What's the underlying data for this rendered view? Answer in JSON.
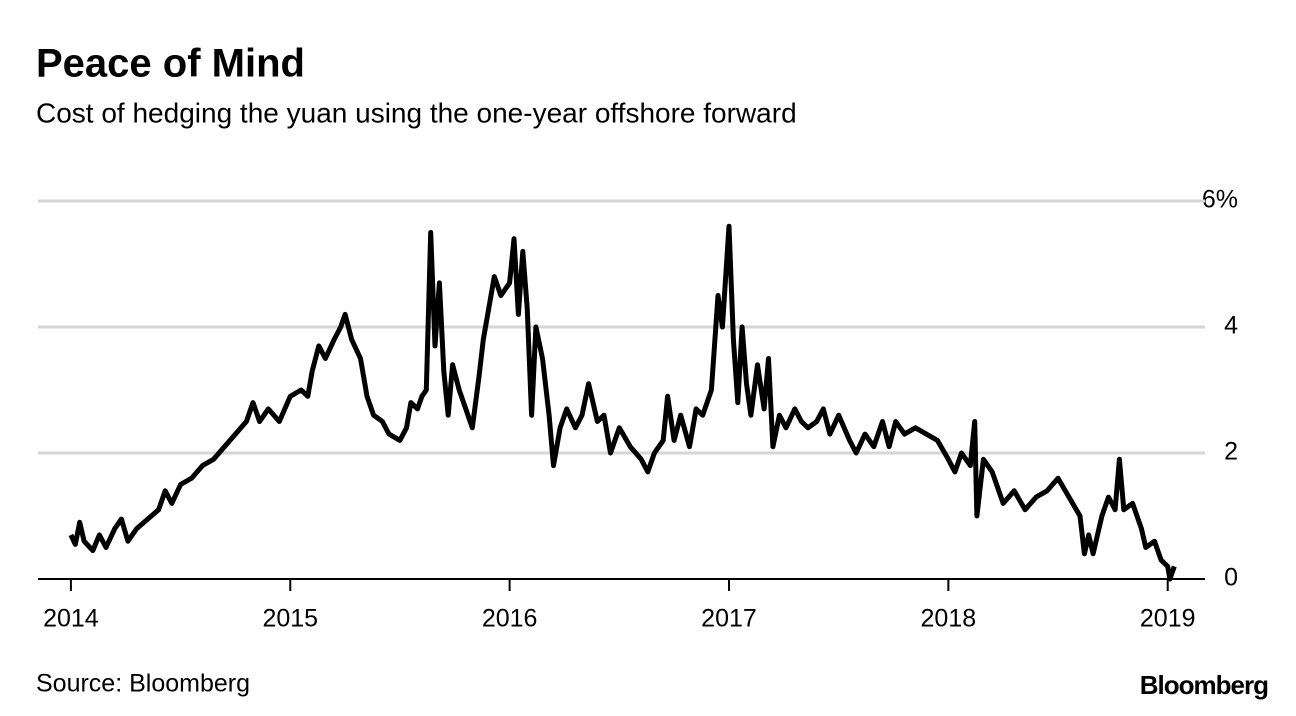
{
  "chart_data": {
    "type": "line",
    "title": "Peace of Mind",
    "subtitle": "Cost of hedging the yuan using the one-year offshore forward",
    "source": "Source: Bloomberg",
    "brand": "Bloomberg",
    "xlim": [
      2013.85,
      2019.17
    ],
    "xticks": [
      2014,
      2015,
      2016,
      2017,
      2018,
      2019
    ],
    "ylim": [
      0,
      6
    ],
    "yticks": [
      0,
      2,
      4,
      {
        "value": 6,
        "label": "6%"
      }
    ],
    "grid": true,
    "x": [
      2014.0,
      2014.02,
      2014.04,
      2014.06,
      2014.1,
      2014.13,
      2014.16,
      2014.2,
      2014.23,
      2014.26,
      2014.3,
      2014.35,
      2014.4,
      2014.43,
      2014.46,
      2014.5,
      2014.55,
      2014.6,
      2014.65,
      2014.7,
      2014.75,
      2014.8,
      2014.83,
      2014.86,
      2014.9,
      2014.95,
      2015.0,
      2015.05,
      2015.08,
      2015.1,
      2015.13,
      2015.16,
      2015.2,
      2015.23,
      2015.25,
      2015.28,
      2015.32,
      2015.35,
      2015.38,
      2015.42,
      2015.45,
      2015.5,
      2015.53,
      2015.55,
      2015.58,
      2015.6,
      2015.62,
      2015.64,
      2015.66,
      2015.68,
      2015.7,
      2015.72,
      2015.74,
      2015.77,
      2015.8,
      2015.83,
      2015.86,
      2015.88,
      2015.9,
      2015.93,
      2015.96,
      2016.0,
      2016.02,
      2016.04,
      2016.06,
      2016.08,
      2016.1,
      2016.12,
      2016.15,
      2016.18,
      2016.2,
      2016.23,
      2016.26,
      2016.3,
      2016.33,
      2016.36,
      2016.4,
      2016.43,
      2016.46,
      2016.5,
      2016.55,
      2016.6,
      2016.63,
      2016.66,
      2016.7,
      2016.72,
      2016.75,
      2016.78,
      2016.82,
      2016.85,
      2016.88,
      2016.92,
      2016.95,
      2016.97,
      2017.0,
      2017.02,
      2017.04,
      2017.06,
      2017.08,
      2017.1,
      2017.13,
      2017.16,
      2017.18,
      2017.2,
      2017.23,
      2017.26,
      2017.3,
      2017.33,
      2017.36,
      2017.4,
      2017.43,
      2017.46,
      2017.5,
      2017.55,
      2017.58,
      2017.62,
      2017.66,
      2017.7,
      2017.73,
      2017.76,
      2017.8,
      2017.85,
      2017.9,
      2017.95,
      2018.0,
      2018.03,
      2018.06,
      2018.1,
      2018.12,
      2018.13,
      2018.16,
      2018.2,
      2018.25,
      2018.3,
      2018.35,
      2018.4,
      2018.45,
      2018.5,
      2018.55,
      2018.6,
      2018.62,
      2018.64,
      2018.66,
      2018.7,
      2018.73,
      2018.76,
      2018.78,
      2018.8,
      2018.84,
      2018.88,
      2018.9,
      2018.94,
      2018.97,
      2019.0,
      2019.01,
      2019.03
    ],
    "series": [
      {
        "name": "Cost of hedging",
        "color": "#000000",
        "values": [
          0.7,
          0.55,
          0.9,
          0.6,
          0.45,
          0.7,
          0.5,
          0.8,
          0.95,
          0.6,
          0.8,
          0.95,
          1.1,
          1.4,
          1.2,
          1.5,
          1.6,
          1.8,
          1.9,
          2.1,
          2.3,
          2.5,
          2.8,
          2.5,
          2.7,
          2.5,
          2.9,
          3.0,
          2.9,
          3.3,
          3.7,
          3.5,
          3.8,
          4.0,
          4.2,
          3.8,
          3.5,
          2.9,
          2.6,
          2.5,
          2.3,
          2.2,
          2.4,
          2.8,
          2.7,
          2.9,
          3.0,
          5.5,
          3.7,
          4.7,
          3.3,
          2.6,
          3.4,
          3.0,
          2.7,
          2.4,
          3.2,
          3.8,
          4.2,
          4.8,
          4.5,
          4.7,
          5.4,
          4.2,
          5.2,
          4.3,
          2.6,
          4.0,
          3.5,
          2.6,
          1.8,
          2.4,
          2.7,
          2.4,
          2.6,
          3.1,
          2.5,
          2.6,
          2.0,
          2.4,
          2.1,
          1.9,
          1.7,
          2.0,
          2.2,
          2.9,
          2.2,
          2.6,
          2.1,
          2.7,
          2.6,
          3.0,
          4.5,
          4.0,
          5.6,
          3.8,
          2.8,
          4.0,
          3.1,
          2.6,
          3.4,
          2.7,
          3.5,
          2.1,
          2.6,
          2.4,
          2.7,
          2.5,
          2.4,
          2.5,
          2.7,
          2.3,
          2.6,
          2.2,
          2.0,
          2.3,
          2.1,
          2.5,
          2.1,
          2.5,
          2.3,
          2.4,
          2.3,
          2.2,
          1.9,
          1.7,
          2.0,
          1.8,
          2.5,
          1.0,
          1.9,
          1.7,
          1.2,
          1.4,
          1.1,
          1.3,
          1.4,
          1.6,
          1.3,
          1.0,
          0.4,
          0.7,
          0.4,
          1.0,
          1.3,
          1.1,
          1.9,
          1.1,
          1.2,
          0.8,
          0.5,
          0.6,
          0.3,
          0.2,
          0.0,
          0.2
        ]
      }
    ]
  }
}
